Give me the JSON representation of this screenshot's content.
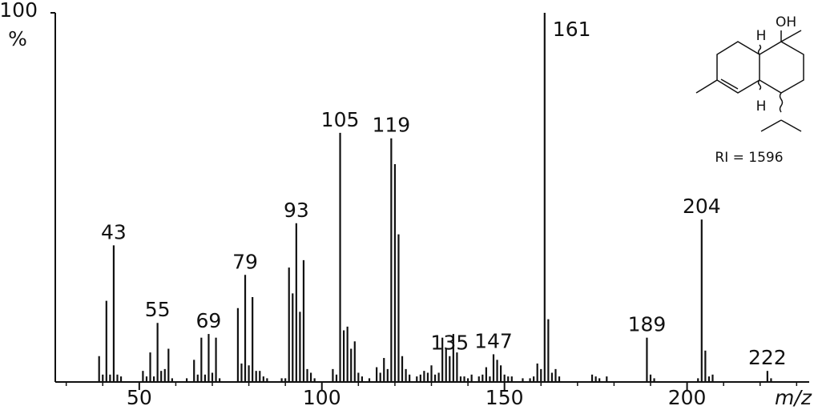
{
  "chart_data": {
    "type": "spectrum",
    "ylabel": "%",
    "xlabel": "m/z",
    "x": [
      39,
      40,
      41,
      42,
      43,
      44,
      45,
      51,
      52,
      53,
      54,
      55,
      56,
      57,
      58,
      59,
      63,
      65,
      66,
      67,
      68,
      69,
      70,
      71,
      72,
      77,
      78,
      79,
      80,
      81,
      82,
      83,
      84,
      85,
      89,
      90,
      91,
      92,
      93,
      94,
      95,
      96,
      97,
      98,
      103,
      104,
      105,
      106,
      107,
      108,
      109,
      110,
      111,
      113,
      115,
      116,
      117,
      118,
      119,
      120,
      121,
      122,
      123,
      124,
      126,
      127,
      128,
      129,
      130,
      131,
      132,
      133,
      134,
      135,
      136,
      137,
      138,
      139,
      140,
      141,
      143,
      144,
      145,
      146,
      147,
      148,
      149,
      150,
      151,
      152,
      155,
      157,
      158,
      159,
      160,
      161,
      162,
      163,
      164,
      165,
      174,
      175,
      176,
      178,
      189,
      190,
      191,
      203,
      204,
      205,
      206,
      207,
      222,
      223
    ],
    "values": [
      7,
      2,
      22,
      2,
      37,
      2,
      1.5,
      3,
      1.5,
      8,
      1.5,
      16,
      3,
      3.5,
      9,
      1,
      1,
      6,
      2,
      12,
      2,
      13,
      2.5,
      12,
      1,
      20,
      5,
      29,
      4.5,
      23,
      3,
      3,
      1.5,
      1,
      1,
      1,
      31,
      24,
      43,
      19,
      33,
      3.5,
      2.5,
      1,
      3.5,
      2,
      67.5,
      14,
      15,
      9,
      11,
      2.5,
      1.5,
      1,
      4,
      2.5,
      6.5,
      3.5,
      66,
      59,
      40,
      7,
      3.5,
      2,
      1.5,
      2,
      3,
      2.5,
      4.5,
      2,
      2.5,
      12,
      9,
      7,
      13,
      8,
      1.5,
      1.5,
      1,
      2,
      1.5,
      2,
      4,
      1.5,
      7.5,
      6,
      4.5,
      2,
      1.5,
      1.5,
      1,
      1,
      1.5,
      5,
      3.5,
      100,
      17,
      2.5,
      3.5,
      1.5,
      2,
      1.5,
      1,
      1.5,
      12,
      2,
      1,
      1,
      44,
      8.5,
      1.5,
      2,
      3,
      1
    ],
    "peak_labels": [
      null,
      null,
      null,
      null,
      "43",
      null,
      null,
      null,
      null,
      null,
      null,
      "55",
      null,
      null,
      null,
      null,
      null,
      null,
      null,
      null,
      null,
      "69",
      null,
      null,
      null,
      null,
      null,
      "79",
      null,
      null,
      null,
      null,
      null,
      null,
      null,
      null,
      null,
      null,
      "93",
      null,
      null,
      null,
      null,
      null,
      null,
      null,
      "105",
      null,
      null,
      null,
      null,
      null,
      null,
      null,
      null,
      null,
      null,
      null,
      "119",
      null,
      null,
      null,
      null,
      null,
      null,
      null,
      null,
      null,
      null,
      null,
      null,
      null,
      null,
      "135",
      null,
      null,
      null,
      null,
      null,
      null,
      null,
      null,
      null,
      null,
      "147",
      null,
      null,
      null,
      null,
      null,
      null,
      null,
      null,
      null,
      null,
      "161",
      null,
      null,
      null,
      null,
      null,
      null,
      null,
      null,
      "189",
      null,
      null,
      null,
      "204",
      null,
      null,
      null,
      "222",
      null
    ],
    "color": "#111111",
    "xlim": [
      27,
      233
    ],
    "xticks": [
      50,
      100,
      150,
      200
    ],
    "xminorticks": [
      30,
      40,
      60,
      70,
      80,
      90,
      110,
      120,
      130,
      140,
      160,
      170,
      180,
      190,
      210,
      220,
      230
    ],
    "ylim": [
      0,
      100
    ],
    "yticks": [
      100
    ]
  },
  "structure": {
    "labels": [
      "OH",
      "H",
      "H"
    ],
    "caption": "RI = 1596"
  }
}
